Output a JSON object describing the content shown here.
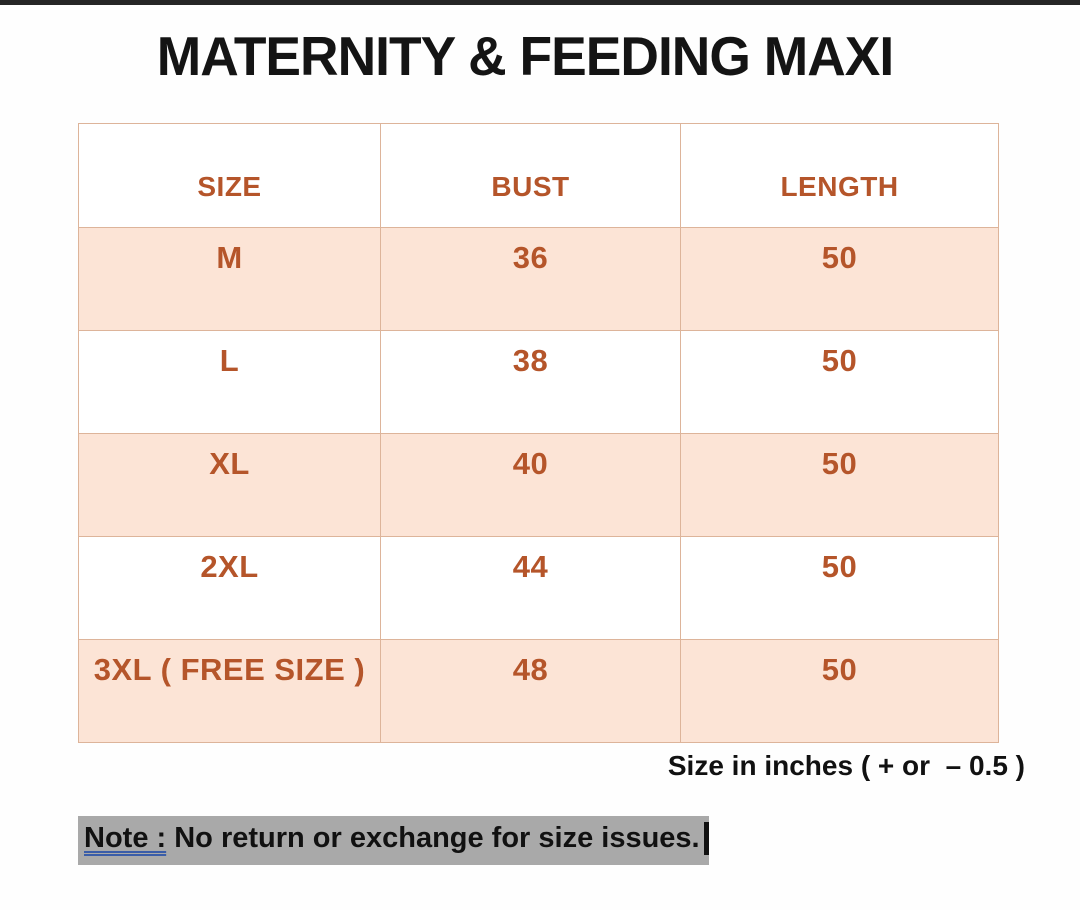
{
  "page": {
    "title": "MATERNITY & FEEDING MAXI",
    "caption": "Size in inches ( + or  – 0.5 )",
    "note_label": "Note :",
    "note_text": " No return or exchange for size issues."
  },
  "table": {
    "columns": [
      "SIZE",
      "BUST",
      "LENGTH"
    ],
    "rows": [
      {
        "size": "M",
        "bust": "36",
        "length": "50"
      },
      {
        "size": "L",
        "bust": "38",
        "length": "50"
      },
      {
        "size": "XL",
        "bust": "40",
        "length": "50"
      },
      {
        "size": "2XL",
        "bust": "44",
        "length": "50"
      },
      {
        "size": "3XL ( FREE SIZE )",
        "bust": "48",
        "length": "50"
      }
    ]
  },
  "colors": {
    "accent_text": "#b5552a",
    "row_fill": "#fce4d6",
    "table_border": "#ddb49a",
    "note_highlight": "#a9a9a9",
    "note_underline": "#3a5da8",
    "title_text": "#141414",
    "top_bar": "#262626"
  }
}
